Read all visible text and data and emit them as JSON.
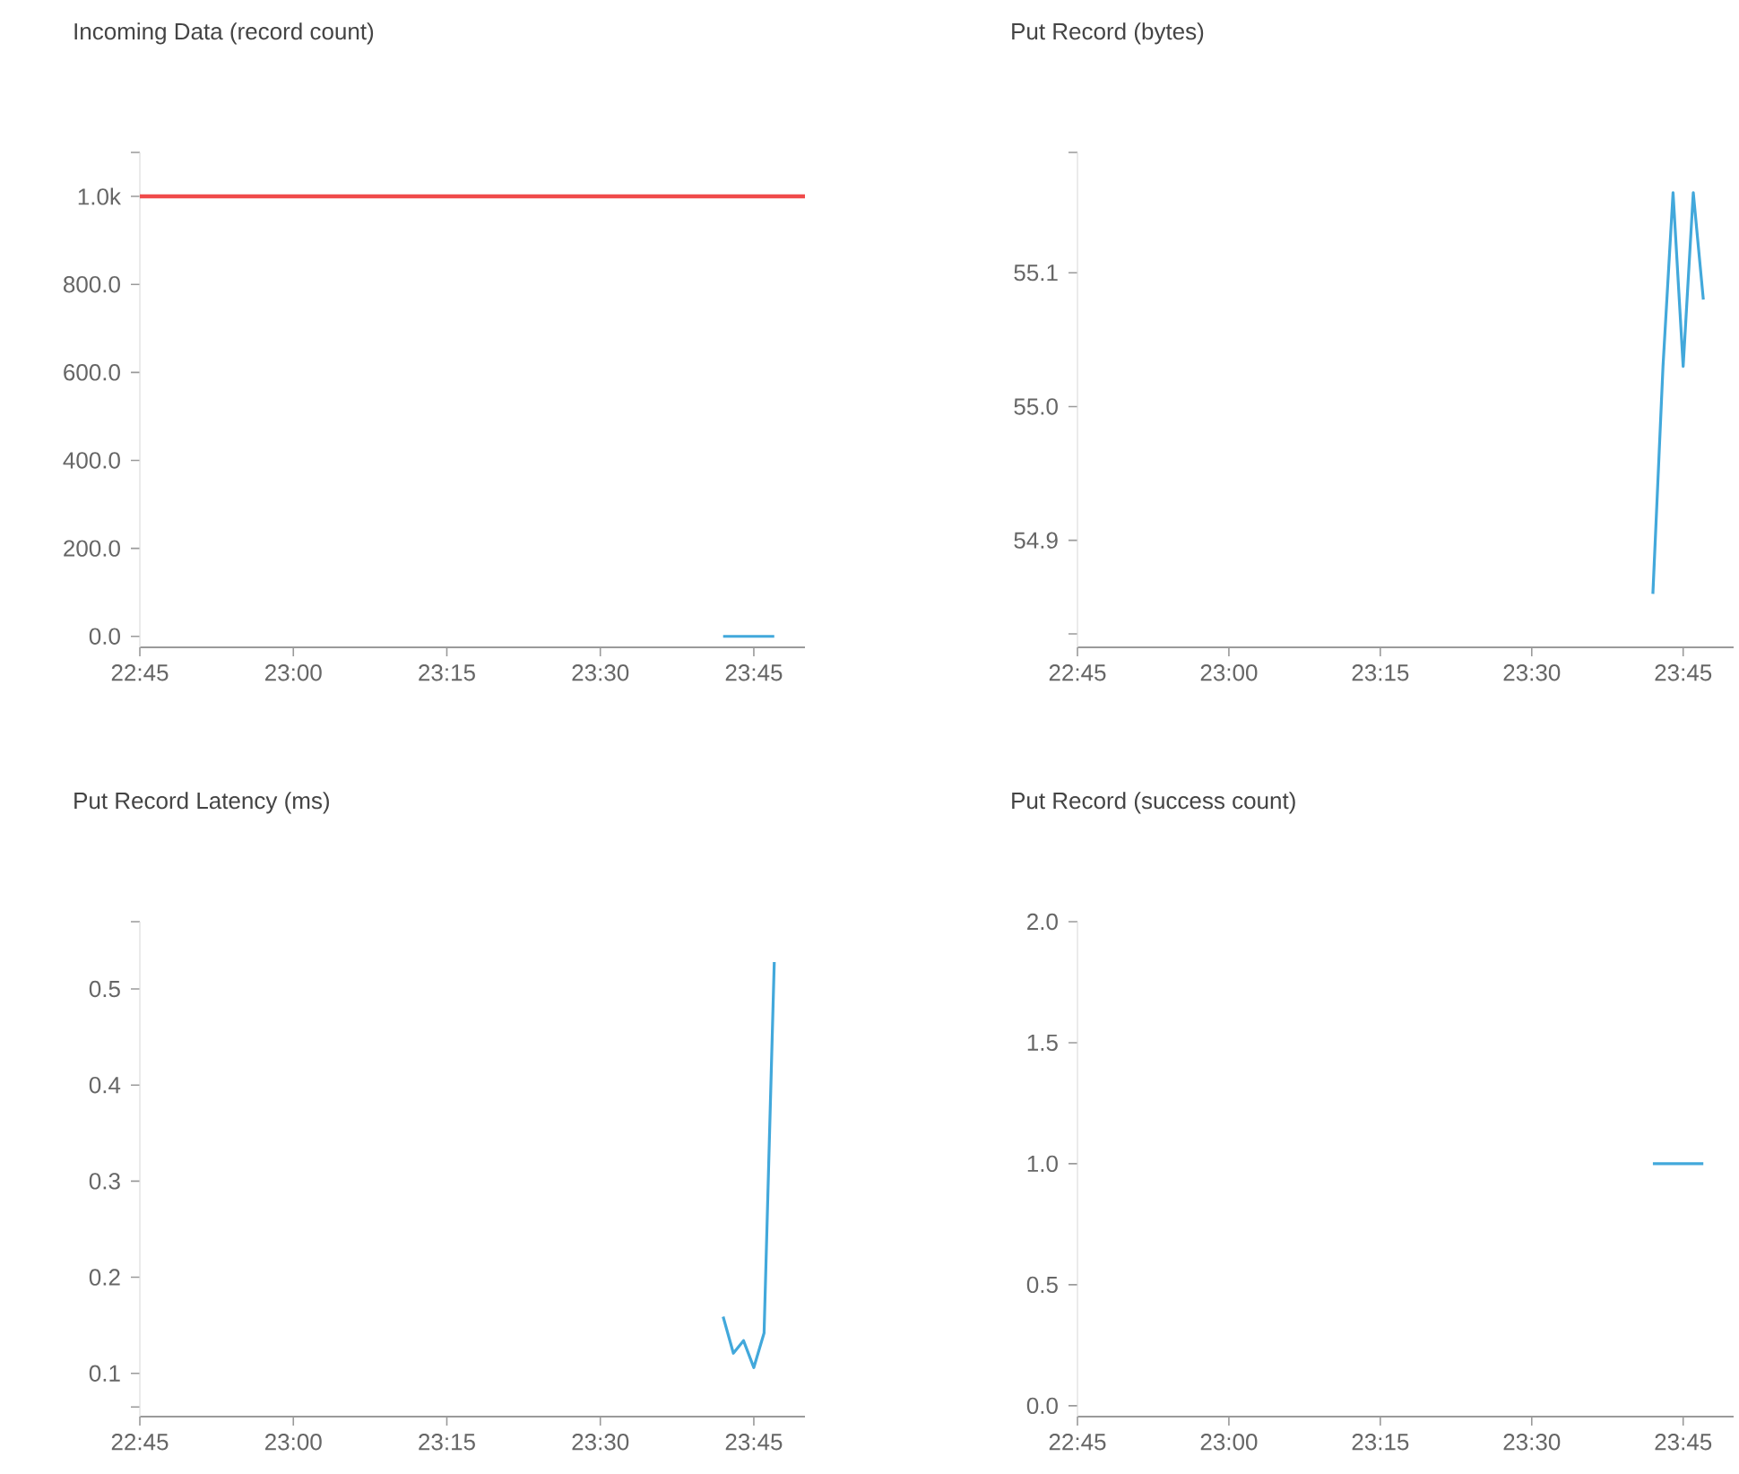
{
  "chart_data": [
    {
      "type": "line",
      "title": "Incoming Data (record count)",
      "x": [
        23.7,
        23.7167,
        23.7333,
        23.75,
        23.7667,
        23.7833
      ],
      "series": [
        {
          "color": "#42a8db",
          "values": [
            0,
            0,
            0,
            0,
            0,
            0
          ]
        }
      ],
      "xlim": [
        22.75,
        23.8333
      ],
      "xticks": [
        {
          "value": 22.75,
          "label": "22:45"
        },
        {
          "value": 23.0,
          "label": "23:00"
        },
        {
          "value": 23.25,
          "label": "23:15"
        },
        {
          "value": 23.5,
          "label": "23:30"
        },
        {
          "value": 23.75,
          "label": "23:45"
        }
      ],
      "ylim": [
        -25,
        1100
      ],
      "yticks": [
        {
          "value": 0,
          "label": "0.0"
        },
        {
          "value": 200,
          "label": "200.0"
        },
        {
          "value": 400,
          "label": "400.0"
        },
        {
          "value": 600,
          "label": "600.0"
        },
        {
          "value": 800,
          "label": "800.0"
        },
        {
          "value": 1000,
          "label": "1.0k"
        },
        {
          "value": 1100,
          "label": null
        }
      ],
      "ref_lines": [
        {
          "axis": "y",
          "value": 1000,
          "color": "#f04b4b"
        }
      ]
    },
    {
      "type": "line",
      "title": "Put Record (bytes)",
      "x": [
        23.7,
        23.7167,
        23.7333,
        23.75,
        23.7667,
        23.7833
      ],
      "series": [
        {
          "color": "#42a8db",
          "values": [
            54.86,
            55.03,
            55.16,
            55.03,
            55.16,
            55.08
          ]
        }
      ],
      "xlim": [
        22.75,
        23.8333
      ],
      "xticks": [
        {
          "value": 22.75,
          "label": "22:45"
        },
        {
          "value": 23.0,
          "label": "23:00"
        },
        {
          "value": 23.25,
          "label": "23:15"
        },
        {
          "value": 23.5,
          "label": "23:30"
        },
        {
          "value": 23.75,
          "label": "23:45"
        }
      ],
      "ylim": [
        54.82,
        55.19
      ],
      "yticks": [
        {
          "value": 54.83,
          "label": null
        },
        54.9,
        {
          "value": 55.0,
          "label": "55.0"
        },
        55.1,
        {
          "value": 55.19,
          "label": null
        }
      ]
    },
    {
      "type": "line",
      "title": "Put Record Latency (ms)",
      "x": [
        23.7,
        23.7167,
        23.7333,
        23.75,
        23.7667,
        23.7833
      ],
      "series": [
        {
          "color": "#42a8db",
          "values": [
            0.159,
            0.121,
            0.134,
            0.106,
            0.142,
            0.528
          ]
        }
      ],
      "xlim": [
        22.75,
        23.8333
      ],
      "xticks": [
        {
          "value": 22.75,
          "label": "22:45"
        },
        {
          "value": 23.0,
          "label": "23:00"
        },
        {
          "value": 23.25,
          "label": "23:15"
        },
        {
          "value": 23.5,
          "label": "23:30"
        },
        {
          "value": 23.75,
          "label": "23:45"
        }
      ],
      "ylim": [
        0.055,
        0.57
      ],
      "yticks": [
        {
          "value": 0.065,
          "label": null
        },
        0.1,
        0.2,
        0.3,
        0.4,
        0.5,
        {
          "value": 0.57,
          "label": null
        }
      ]
    },
    {
      "type": "line",
      "title": "Put Record (success count)",
      "x": [
        23.7,
        23.7167,
        23.7333,
        23.75,
        23.7667,
        23.7833
      ],
      "series": [
        {
          "color": "#42a8db",
          "values": [
            1,
            1,
            1,
            1,
            1,
            1
          ]
        }
      ],
      "xlim": [
        22.75,
        23.8333
      ],
      "xticks": [
        {
          "value": 22.75,
          "label": "22:45"
        },
        {
          "value": 23.0,
          "label": "23:00"
        },
        {
          "value": 23.25,
          "label": "23:15"
        },
        {
          "value": 23.5,
          "label": "23:30"
        },
        {
          "value": 23.75,
          "label": "23:45"
        }
      ],
      "ylim": [
        -0.045,
        2.0
      ],
      "yticks": [
        {
          "value": 0,
          "label": "0.0"
        },
        {
          "value": 0.5,
          "label": "0.5"
        },
        {
          "value": 1,
          "label": "1.0"
        },
        {
          "value": 1.5,
          "label": "1.5"
        },
        {
          "value": 2,
          "label": "2.0"
        }
      ]
    }
  ]
}
